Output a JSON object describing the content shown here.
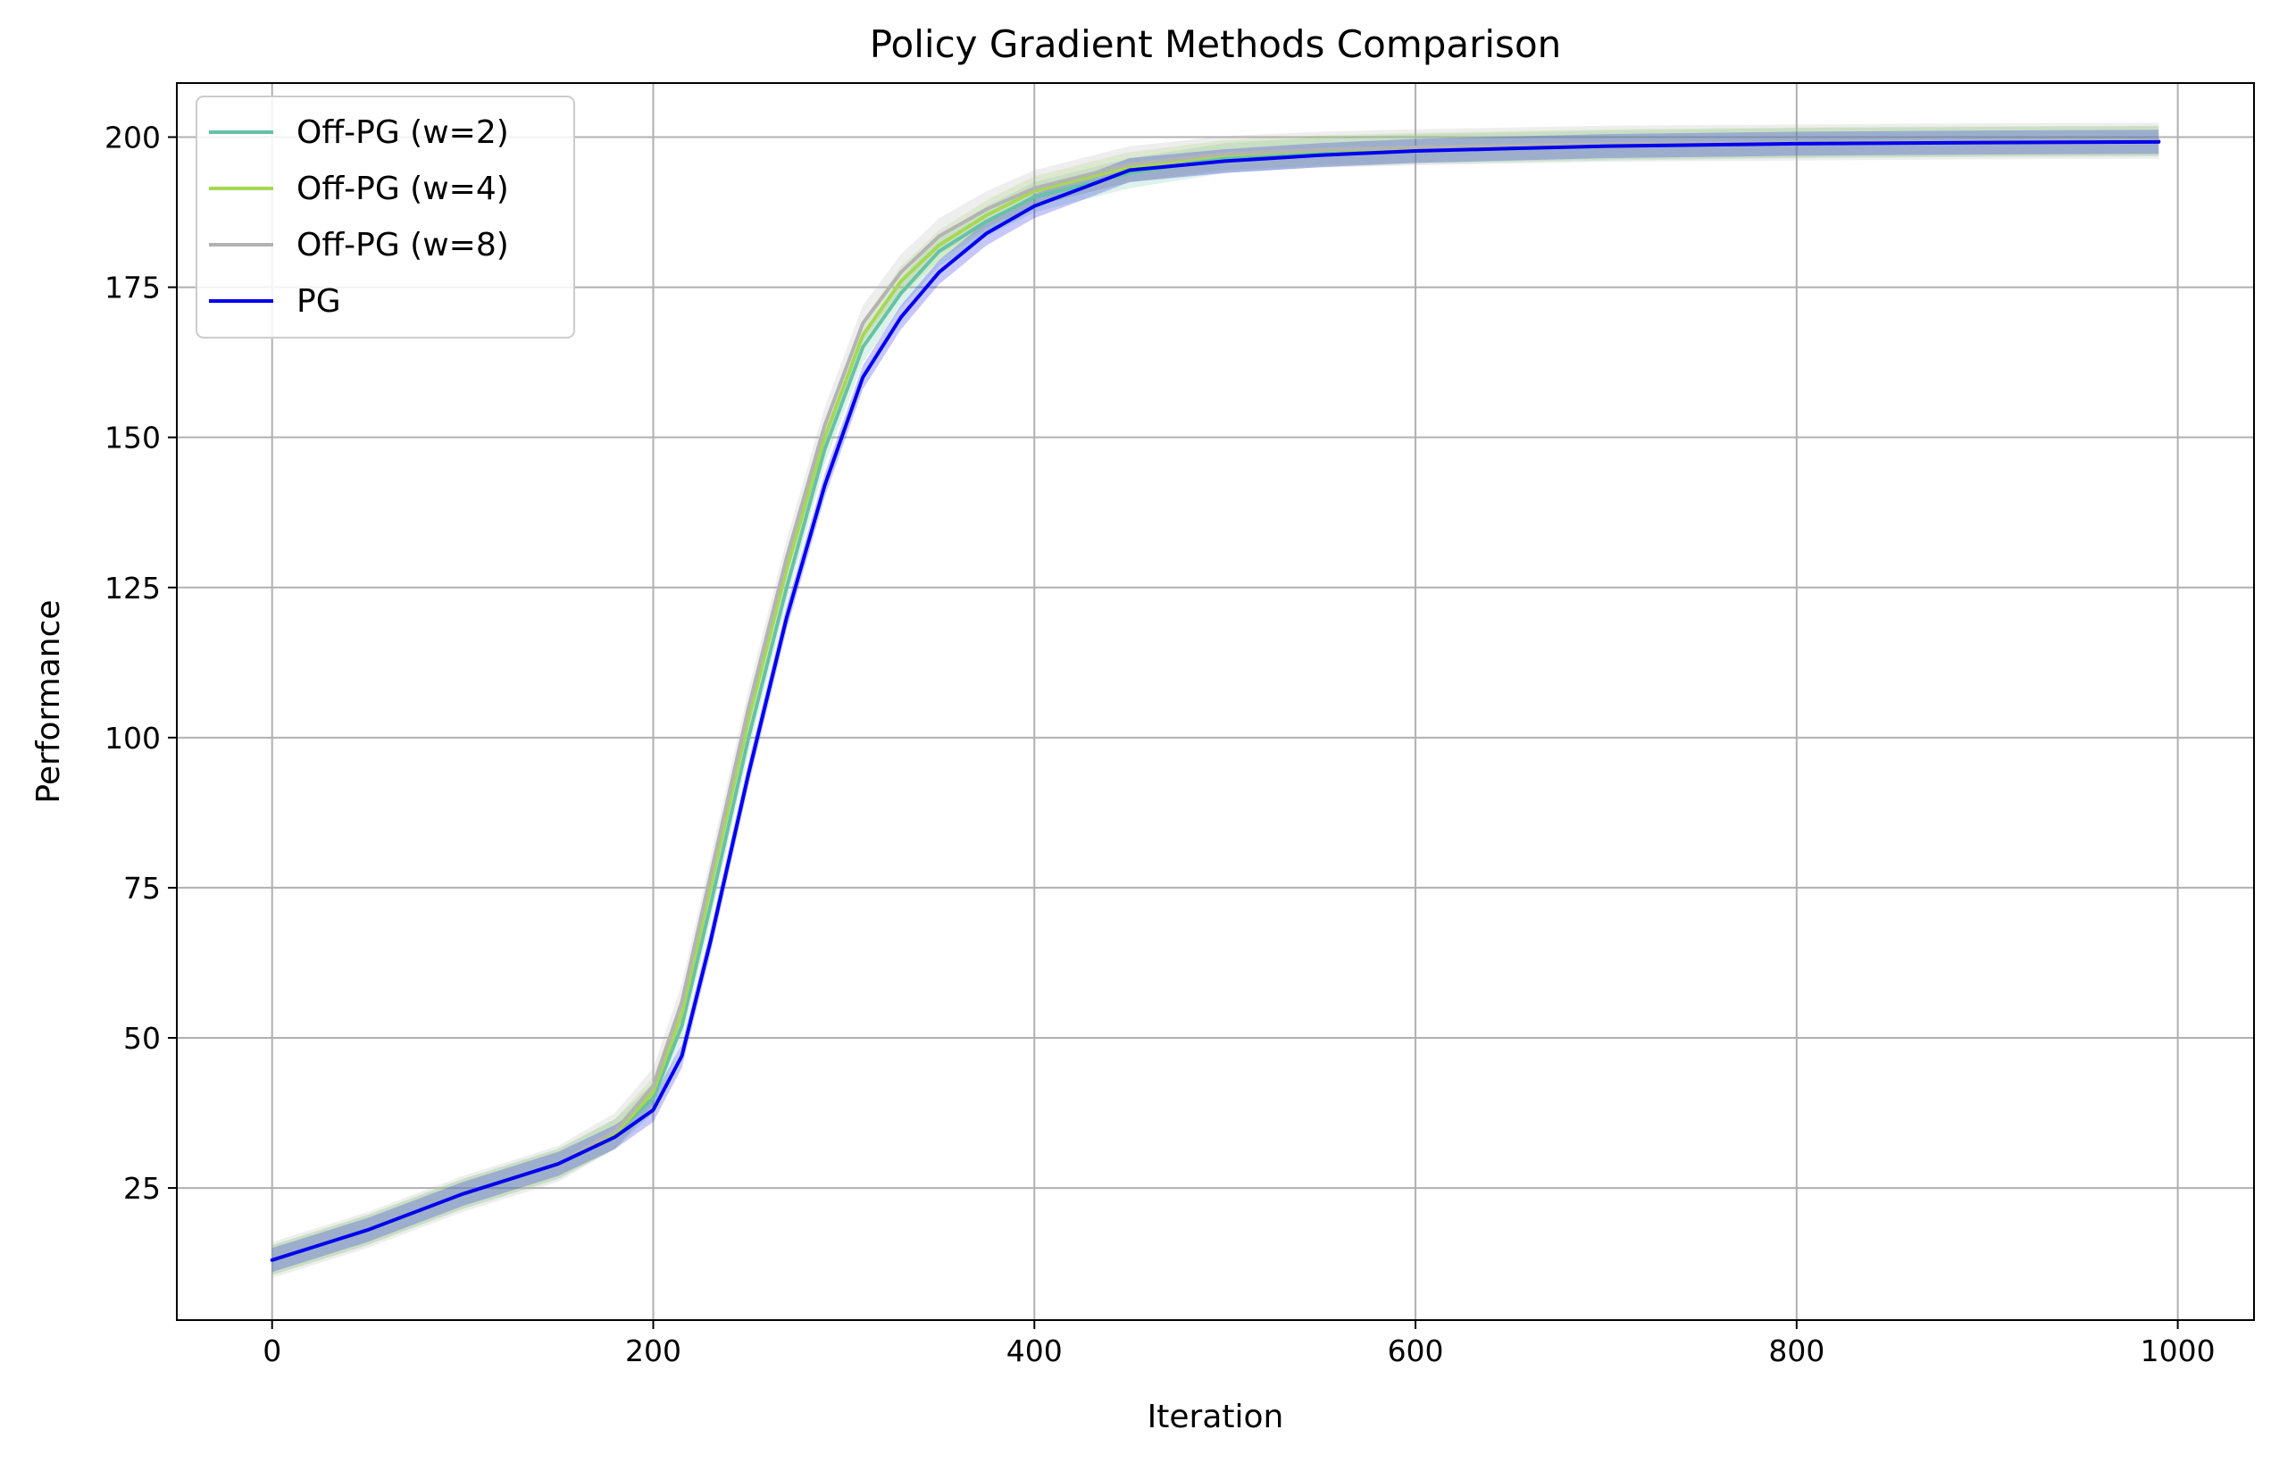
{
  "chart_data": {
    "type": "line",
    "title": "Policy Gradient Methods Comparison",
    "xlabel": "Iteration",
    "ylabel": "Performance",
    "xlim": [
      -50,
      1040
    ],
    "ylim": [
      3,
      209
    ],
    "xticks": [
      0,
      200,
      400,
      600,
      800,
      1000
    ],
    "yticks": [
      25,
      50,
      75,
      100,
      125,
      150,
      175,
      200
    ],
    "grid": true,
    "legend_position": "top-left",
    "series": [
      {
        "name": "Off-PG (w=2)",
        "color": "#66c2a5",
        "x": [
          0,
          50,
          100,
          150,
          180,
          200,
          215,
          230,
          250,
          270,
          290,
          310,
          330,
          350,
          375,
          400,
          450,
          500,
          550,
          600,
          650,
          700,
          800,
          900,
          990
        ],
        "y": [
          13,
          18,
          24,
          29,
          34,
          40,
          52,
          72,
          100,
          125,
          148,
          165,
          174,
          181,
          186,
          190,
          194,
          196.5,
          197.5,
          198,
          198.3,
          198.6,
          199,
          199.2,
          199.3
        ],
        "band": 2.5
      },
      {
        "name": "Off-PG (w=4)",
        "color": "#a6d854",
        "x": [
          0,
          50,
          100,
          150,
          180,
          200,
          215,
          230,
          250,
          270,
          290,
          310,
          330,
          350,
          375,
          400,
          450,
          500,
          550,
          600,
          650,
          700,
          800,
          900,
          990
        ],
        "y": [
          13,
          18,
          24,
          29,
          34,
          41,
          54,
          75,
          103,
          128,
          150,
          167,
          176,
          182,
          187,
          191,
          195,
          197,
          197.8,
          198.2,
          198.5,
          198.8,
          199.1,
          199.3,
          199.4
        ],
        "band": 2.5
      },
      {
        "name": "Off-PG (w=8)",
        "color": "#b3b3b3",
        "x": [
          0,
          50,
          100,
          150,
          180,
          200,
          215,
          230,
          250,
          270,
          290,
          310,
          330,
          350,
          375,
          400,
          450,
          500,
          550,
          600,
          650,
          700,
          800,
          900,
          990
        ],
        "y": [
          13,
          18,
          24,
          29,
          34.5,
          42,
          56,
          77,
          105,
          130,
          152,
          169,
          177.5,
          183.5,
          188,
          191.5,
          195.5,
          197.2,
          197.9,
          198.3,
          198.6,
          198.9,
          199.1,
          199.3,
          199.4
        ],
        "band": 3
      },
      {
        "name": "PG",
        "color": "#0000ee",
        "x": [
          0,
          50,
          100,
          150,
          180,
          200,
          215,
          230,
          250,
          270,
          290,
          310,
          330,
          350,
          375,
          400,
          425,
          450,
          500,
          550,
          600,
          650,
          700,
          800,
          900,
          990
        ],
        "y": [
          13,
          18,
          24,
          29,
          33.5,
          38,
          47,
          66,
          94,
          120,
          142,
          160,
          170,
          177.5,
          184,
          188.5,
          191.5,
          194.5,
          196,
          197,
          197.7,
          198.1,
          198.5,
          198.9,
          199.1,
          199.2
        ],
        "band": 2
      }
    ]
  }
}
